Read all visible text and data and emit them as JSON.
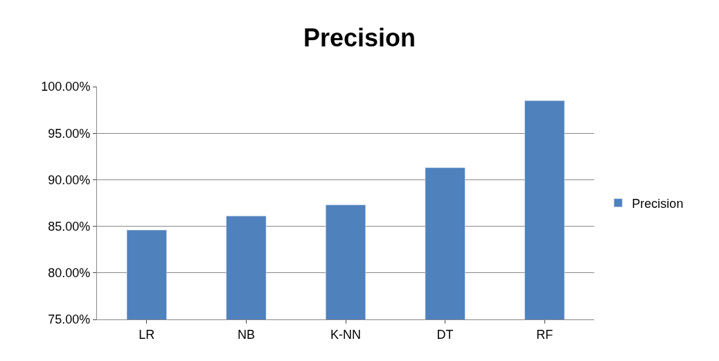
{
  "chart_data": {
    "type": "bar",
    "title": "Precision",
    "categories": [
      "LR",
      "NB",
      "K-NN",
      "DT",
      "RF"
    ],
    "series": [
      {
        "name": "Precision",
        "color": "#4f81bd",
        "values": [
          84.6,
          86.1,
          87.3,
          91.3,
          98.5
        ]
      }
    ],
    "ylim": [
      75,
      100
    ],
    "yticks": [
      {
        "value": 75,
        "label": "75.00%"
      },
      {
        "value": 80,
        "label": "80.00%"
      },
      {
        "value": 85,
        "label": "85.00%"
      },
      {
        "value": 90,
        "label": "90.00%"
      },
      {
        "value": 95,
        "label": "95.00%"
      },
      {
        "value": 100,
        "label": "100.00%"
      }
    ],
    "grid": "y",
    "legend": "right"
  }
}
